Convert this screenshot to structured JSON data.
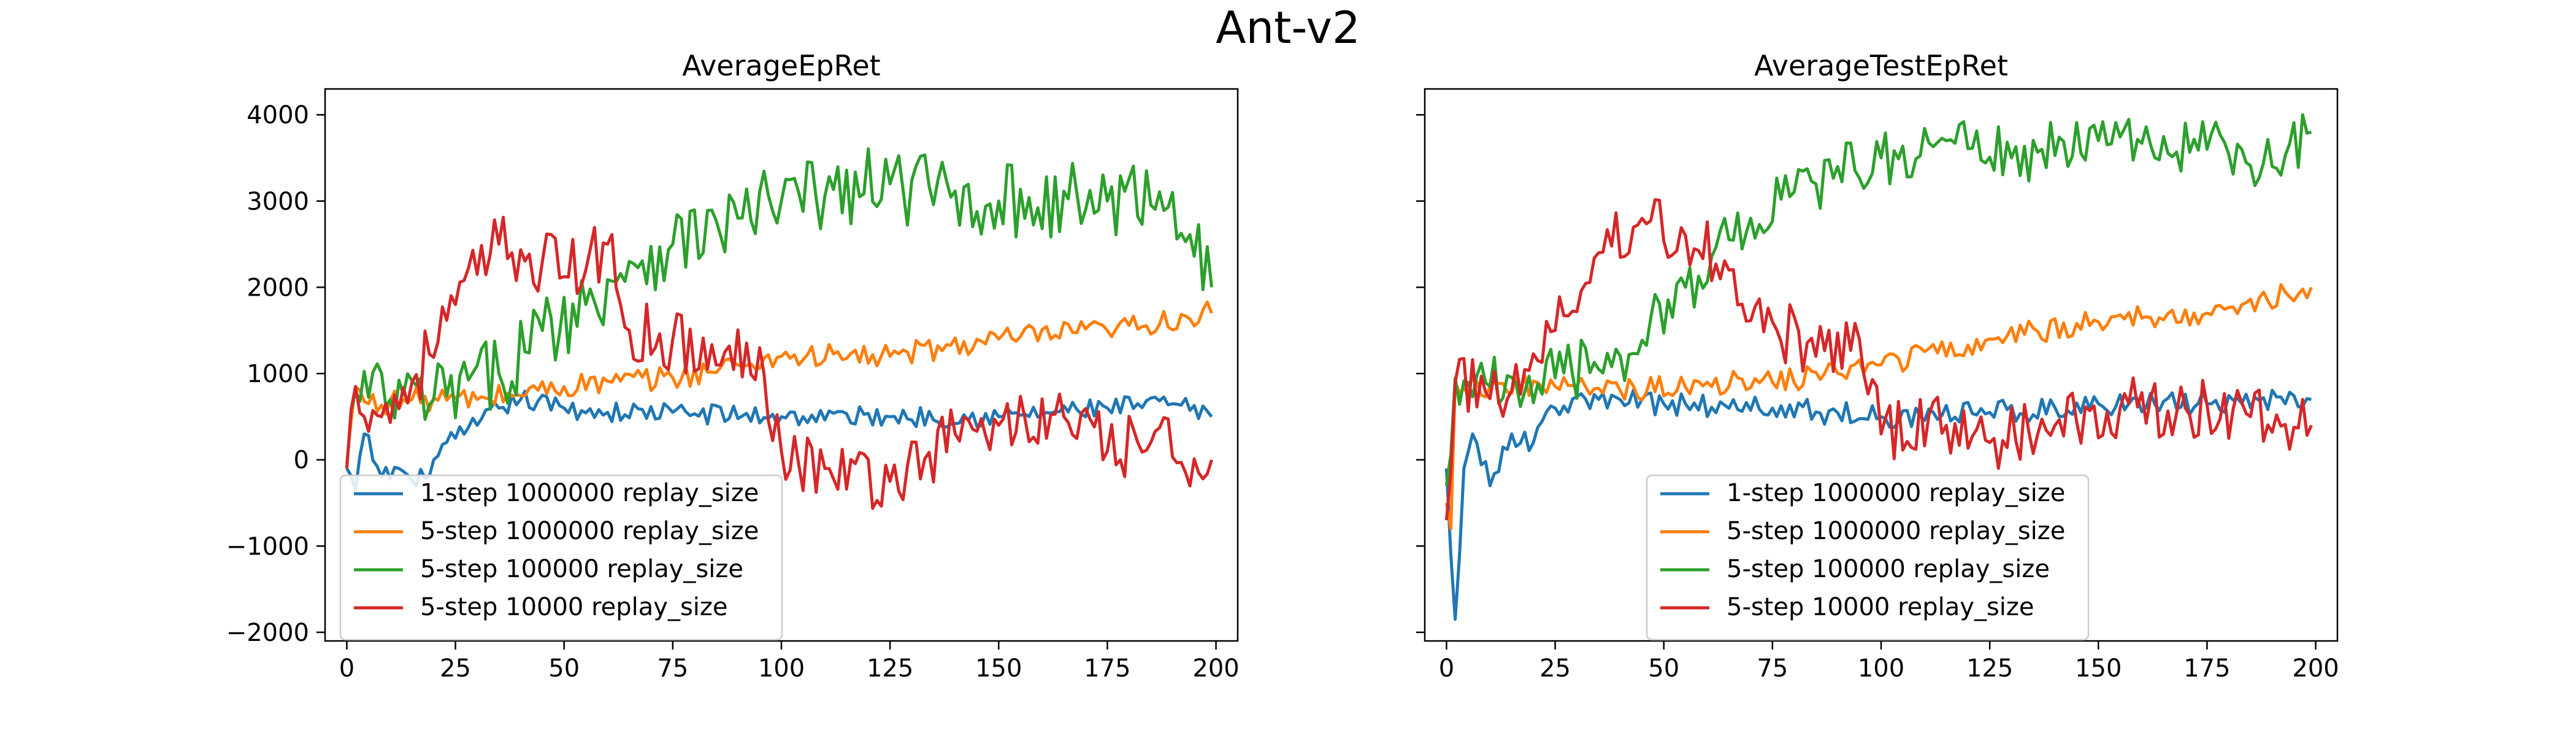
{
  "figure_title": "Ant-v2",
  "colors": {
    "blue": "#1f77b4",
    "orange": "#ff7f0e",
    "green": "#2ca02c",
    "red": "#d62728"
  },
  "chart_data": [
    {
      "type": "line",
      "title": "AverageEpRet",
      "xlabel": "",
      "ylabel": "",
      "xlim": [
        -5,
        205
      ],
      "ylim": [
        -2100,
        4300
      ],
      "xticks": [
        0,
        25,
        50,
        75,
        100,
        125,
        150,
        175,
        200
      ],
      "yticks": [
        -2000,
        -1000,
        0,
        1000,
        2000,
        3000,
        4000
      ],
      "grid": false,
      "legend": "lower-left",
      "series": [
        {
          "name": "1-step 1000000 replay_size",
          "color": "#1f77b4",
          "anchors": [
            [
              0,
              -100
            ],
            [
              2,
              -350
            ],
            [
              4,
              300
            ],
            [
              8,
              -200
            ],
            [
              12,
              -100
            ],
            [
              16,
              -300
            ],
            [
              20,
              0
            ],
            [
              25,
              250
            ],
            [
              30,
              400
            ],
            [
              35,
              600
            ],
            [
              40,
              700
            ],
            [
              50,
              600
            ],
            [
              60,
              550
            ],
            [
              75,
              550
            ],
            [
              100,
              500
            ],
            [
              125,
              500
            ],
            [
              150,
              500
            ],
            [
              175,
              600
            ],
            [
              190,
              650
            ],
            [
              199,
              500
            ]
          ],
          "noise": 120
        },
        {
          "name": "5-step 1000000 replay_size",
          "color": "#ff7f0e",
          "anchors": [
            [
              0,
              -50
            ],
            [
              2,
              850
            ],
            [
              5,
              650
            ],
            [
              15,
              700
            ],
            [
              30,
              700
            ],
            [
              50,
              850
            ],
            [
              75,
              950
            ],
            [
              90,
              1100
            ],
            [
              100,
              1200
            ],
            [
              125,
              1200
            ],
            [
              150,
              1400
            ],
            [
              175,
              1500
            ],
            [
              199,
              1700
            ]
          ],
          "noise": 140
        },
        {
          "name": "5-step 100000 replay_size",
          "color": "#2ca02c",
          "anchors": [
            [
              0,
              -100
            ],
            [
              2,
              800
            ],
            [
              10,
              700
            ],
            [
              20,
              700
            ],
            [
              35,
              1000
            ],
            [
              45,
              1500
            ],
            [
              55,
              1800
            ],
            [
              65,
              2300
            ],
            [
              75,
              2500
            ],
            [
              90,
              2800
            ],
            [
              100,
              3000
            ],
            [
              125,
              3200
            ],
            [
              150,
              3000
            ],
            [
              175,
              3000
            ],
            [
              190,
              3100
            ],
            [
              199,
              2000
            ]
          ],
          "noise": 450
        },
        {
          "name": "5-step 10000 replay_size",
          "color": "#d62728",
          "anchors": [
            [
              0,
              -100
            ],
            [
              2,
              850
            ],
            [
              8,
              500
            ],
            [
              15,
              900
            ],
            [
              25,
              1800
            ],
            [
              35,
              2500
            ],
            [
              45,
              2300
            ],
            [
              55,
              2200
            ],
            [
              60,
              2500
            ],
            [
              65,
              1500
            ],
            [
              75,
              1400
            ],
            [
              85,
              1100
            ],
            [
              95,
              1300
            ],
            [
              100,
              100
            ],
            [
              110,
              -100
            ],
            [
              125,
              -250
            ],
            [
              140,
              300
            ],
            [
              150,
              400
            ],
            [
              165,
              500
            ],
            [
              175,
              100
            ],
            [
              185,
              200
            ],
            [
              199,
              0
            ]
          ],
          "noise": 380
        }
      ]
    },
    {
      "type": "line",
      "title": "AverageTestEpRet",
      "xlabel": "",
      "ylabel": "",
      "xlim": [
        -5,
        205
      ],
      "ylim": [
        -2100,
        4300
      ],
      "xticks": [
        0,
        25,
        50,
        75,
        100,
        125,
        150,
        175,
        200
      ],
      "yticks": [
        -2000,
        -1000,
        0,
        1000,
        2000,
        3000,
        4000
      ],
      "grid": false,
      "legend": "lower-center",
      "series": [
        {
          "name": "1-step 1000000 replay_size",
          "color": "#1f77b4",
          "anchors": [
            [
              0,
              -100
            ],
            [
              1,
              -1100
            ],
            [
              2,
              -1850
            ],
            [
              4,
              -100
            ],
            [
              6,
              300
            ],
            [
              10,
              -300
            ],
            [
              15,
              300
            ],
            [
              20,
              200
            ],
            [
              25,
              600
            ],
            [
              35,
              700
            ],
            [
              50,
              650
            ],
            [
              75,
              600
            ],
            [
              100,
              500
            ],
            [
              125,
              550
            ],
            [
              150,
              650
            ],
            [
              175,
              650
            ],
            [
              199,
              700
            ]
          ],
          "noise": 140
        },
        {
          "name": "5-step 1000000 replay_size",
          "color": "#ff7f0e",
          "anchors": [
            [
              0,
              -500
            ],
            [
              1,
              -800
            ],
            [
              2,
              900
            ],
            [
              10,
              850
            ],
            [
              25,
              850
            ],
            [
              40,
              800
            ],
            [
              60,
              900
            ],
            [
              75,
              900
            ],
            [
              100,
              1100
            ],
            [
              125,
              1400
            ],
            [
              150,
              1600
            ],
            [
              175,
              1700
            ],
            [
              199,
              2000
            ]
          ],
          "noise": 140
        },
        {
          "name": "5-step 100000 replay_size",
          "color": "#2ca02c",
          "anchors": [
            [
              0,
              -300
            ],
            [
              2,
              950
            ],
            [
              10,
              850
            ],
            [
              25,
              950
            ],
            [
              40,
              1200
            ],
            [
              55,
              2000
            ],
            [
              70,
              2800
            ],
            [
              85,
              3200
            ],
            [
              100,
              3500
            ],
            [
              115,
              3700
            ],
            [
              130,
              3500
            ],
            [
              150,
              3700
            ],
            [
              175,
              3600
            ],
            [
              190,
              3400
            ],
            [
              199,
              3800
            ]
          ],
          "noise": 350
        },
        {
          "name": "5-step 10000 replay_size",
          "color": "#d62728",
          "anchors": [
            [
              0,
              -700
            ],
            [
              2,
              900
            ],
            [
              15,
              800
            ],
            [
              25,
              1500
            ],
            [
              35,
              2400
            ],
            [
              45,
              2800
            ],
            [
              55,
              2600
            ],
            [
              65,
              2200
            ],
            [
              75,
              1600
            ],
            [
              85,
              1200
            ],
            [
              95,
              1400
            ],
            [
              100,
              300
            ],
            [
              115,
              400
            ],
            [
              125,
              200
            ],
            [
              140,
              400
            ],
            [
              155,
              600
            ],
            [
              170,
              600
            ],
            [
              185,
              500
            ],
            [
              199,
              400
            ]
          ],
          "noise": 360
        }
      ]
    }
  ]
}
